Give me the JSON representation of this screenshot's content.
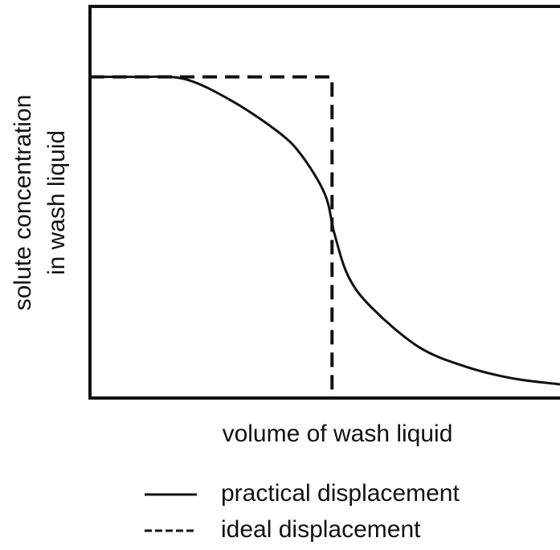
{
  "chart_data": {
    "type": "line",
    "xlabel": "volume of wash liquid",
    "ylabel": [
      "solute concentration",
      "in wash liquid"
    ],
    "xlim": [
      0,
      1
    ],
    "ylim": [
      0,
      1
    ],
    "series": [
      {
        "name": "practical displacement",
        "color": "#111111",
        "linestyle": "solid",
        "x": [
          0,
          0.1,
          0.2,
          0.3,
          0.4,
          0.45,
          0.5,
          0.52,
          0.55,
          0.6,
          0.7,
          0.8,
          0.9,
          1.0
        ],
        "values": [
          0.82,
          0.82,
          0.815,
          0.76,
          0.68,
          0.62,
          0.52,
          0.42,
          0.31,
          0.23,
          0.13,
          0.08,
          0.05,
          0.035
        ]
      },
      {
        "name": "ideal displacement",
        "color": "#111111",
        "linestyle": "dashed",
        "x": [
          0,
          0.515,
          0.515
        ],
        "values": [
          0.82,
          0.82,
          0
        ]
      }
    ]
  }
}
